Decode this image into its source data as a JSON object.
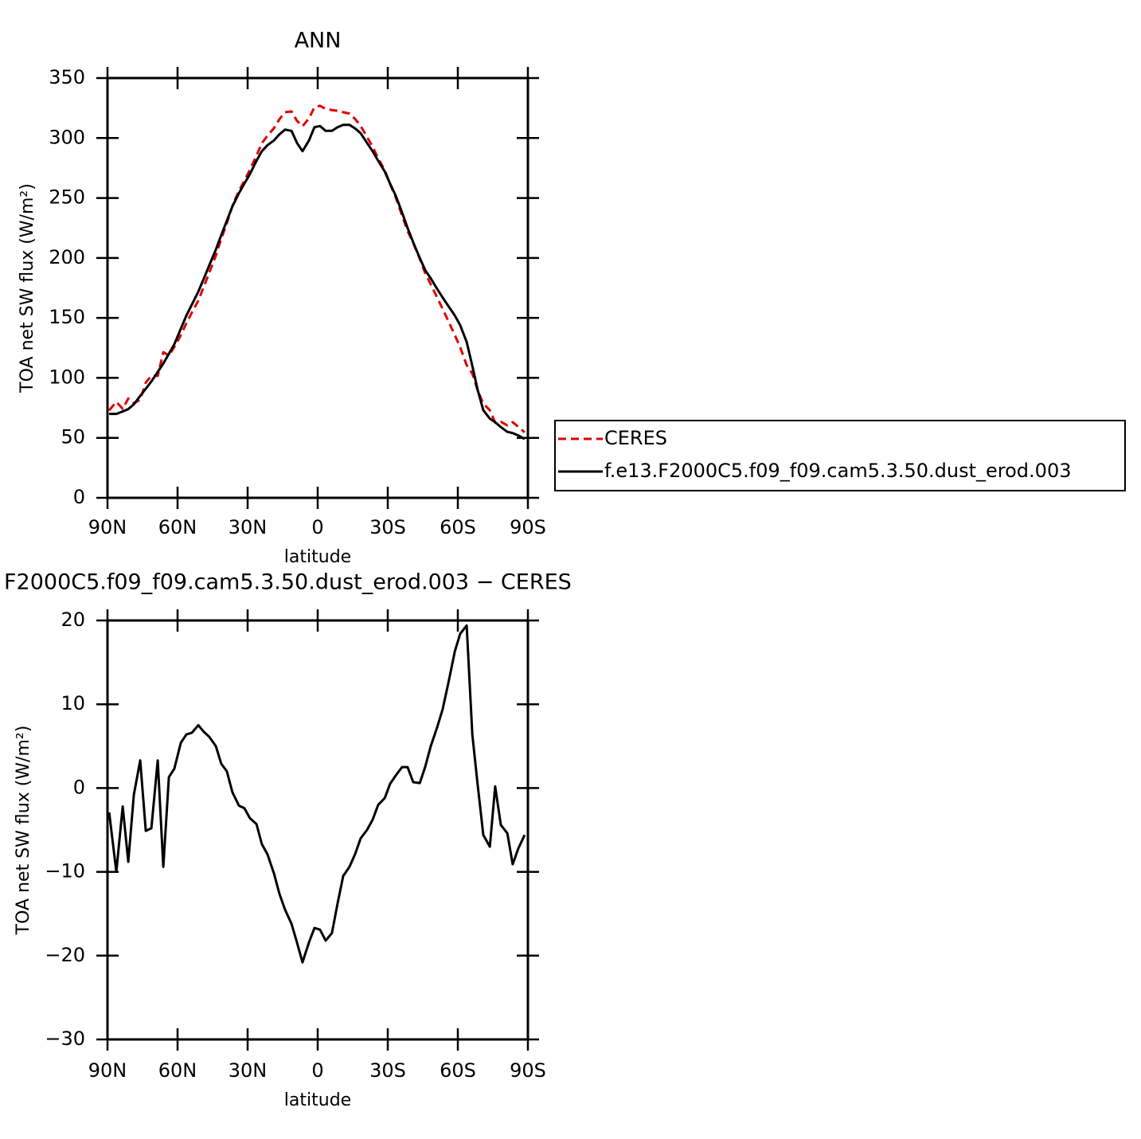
{
  "chart_data": [
    {
      "type": "line",
      "title": "ANN",
      "ylabel": "TOA net SW flux (W/m²)",
      "xlabel": "latitude",
      "x": [
        89.3,
        86.2,
        83.5,
        81.1,
        78.7,
        76.0,
        73.6,
        71.2,
        68.5,
        66.1,
        63.7,
        61.4,
        58.6,
        56.2,
        53.9,
        51.1,
        48.7,
        46.4,
        43.6,
        41.3,
        38.9,
        36.5,
        33.7,
        31.4,
        29.0,
        26.2,
        23.9,
        21.5,
        18.7,
        16.4,
        14.0,
        11.2,
        8.9,
        6.5,
        3.7,
        1.4,
        -1.0,
        -3.4,
        -6.1,
        -8.5,
        -10.9,
        -13.6,
        -16.0,
        -18.4,
        -21.1,
        -23.5,
        -25.9,
        -28.7,
        -31.0,
        -33.4,
        -36.1,
        -38.5,
        -40.9,
        -43.7,
        -46.0,
        -48.4,
        -51.2,
        -53.5,
        -55.9,
        -58.7,
        -61.0,
        -63.8,
        -66.2,
        -68.5,
        -70.9,
        -73.7,
        -76.0,
        -78.4,
        -81.2,
        -83.5,
        -85.9,
        -88.6
      ],
      "series": [
        {
          "name": "CERES",
          "color": "#e00000",
          "dash": true,
          "values": [
            72.9,
            80,
            74.2,
            82.8,
            78.8,
            81.7,
            96.1,
            101.8,
            101.7,
            121.4,
            118.7,
            125.7,
            135.6,
            145.6,
            154.4,
            164.5,
            176.3,
            187.9,
            202,
            216.1,
            229,
            243.5,
            256.1,
            264.4,
            273.6,
            285.3,
            295.7,
            301.9,
            308.2,
            315.6,
            321.5,
            322.2,
            314.4,
            309.8,
            316.4,
            325.7,
            326.9,
            324.2,
            323.3,
            322.8,
            321.5,
            320.4,
            315.9,
            310,
            301,
            292.8,
            283,
            273.2,
            261.5,
            250.5,
            235.5,
            222.5,
            212.3,
            199.4,
            187.5,
            178,
            166.7,
            157.6,
            147.5,
            135.7,
            125.6,
            110.6,
            103.6,
            89.6,
            78.6,
            73,
            62.8,
            63.4,
            60.4,
            63.1,
            59.2,
            54.6
          ]
        },
        {
          "name": "f.e13.F2000C5.f09_f09.cam5.3.50.dust_erod.003",
          "color": "#000000",
          "dash": false,
          "values": [
            70,
            70,
            72,
            74,
            78,
            85,
            91,
            97,
            105,
            112,
            120,
            128,
            141,
            152,
            161,
            172,
            183,
            194,
            207,
            219,
            231,
            243,
            254,
            262,
            270,
            281,
            289,
            294,
            298,
            303,
            307,
            306,
            296,
            289,
            298,
            309,
            310,
            306,
            306,
            309,
            311,
            311,
            308,
            304,
            296,
            289,
            281,
            272,
            262,
            252,
            238,
            225,
            213,
            200,
            190,
            183,
            174,
            167,
            160,
            152,
            144,
            130,
            110,
            90,
            73,
            66,
            63,
            59,
            55,
            54,
            52,
            49
          ]
        }
      ],
      "xlim": [
        90,
        -90
      ],
      "xticks": [
        {
          "value": 90,
          "label": "90N"
        },
        {
          "value": 60,
          "label": "60N"
        },
        {
          "value": 30,
          "label": "30N"
        },
        0,
        {
          "value": -30,
          "label": "30S"
        },
        {
          "value": -60,
          "label": "60S"
        },
        {
          "value": -90,
          "label": "90S"
        }
      ],
      "ylim": [
        0,
        350
      ],
      "yticks": [
        0,
        50,
        100,
        150,
        200,
        250,
        300,
        350
      ],
      "legend": "right"
    },
    {
      "type": "line",
      "title": "F2000C5.f09_f09.cam5.3.50.dust_erod.003 − CERES",
      "ylabel": "TOA net SW flux (W/m²)",
      "xlabel": "latitude",
      "x": [
        89.3,
        86.2,
        83.5,
        81.1,
        78.7,
        76.0,
        73.6,
        71.2,
        68.5,
        66.1,
        63.7,
        61.4,
        58.6,
        56.2,
        53.9,
        51.1,
        48.7,
        46.4,
        43.6,
        41.3,
        38.9,
        36.5,
        33.7,
        31.4,
        29.0,
        26.2,
        23.9,
        21.5,
        18.7,
        16.4,
        14.0,
        11.2,
        8.9,
        6.5,
        3.7,
        1.4,
        -1.0,
        -3.4,
        -6.1,
        -8.5,
        -10.9,
        -13.6,
        -16.0,
        -18.4,
        -21.1,
        -23.5,
        -25.9,
        -28.7,
        -31.0,
        -33.4,
        -36.1,
        -38.5,
        -40.9,
        -43.7,
        -46.0,
        -48.4,
        -51.2,
        -53.5,
        -55.9,
        -58.7,
        -61.0,
        -63.8,
        -66.2,
        -68.5,
        -70.9,
        -73.7,
        -76.0,
        -78.4,
        -81.2,
        -83.5,
        -85.9,
        -88.6
      ],
      "color": "#000000",
      "values": [
        -2.9,
        -10.0,
        -2.2,
        -8.8,
        -0.8,
        3.3,
        -5.1,
        -4.8,
        3.3,
        -9.4,
        1.3,
        2.3,
        5.4,
        6.4,
        6.6,
        7.5,
        6.7,
        6.1,
        5.0,
        2.9,
        2.0,
        -0.5,
        -2.1,
        -2.4,
        -3.6,
        -4.3,
        -6.7,
        -7.9,
        -10.2,
        -12.6,
        -14.5,
        -16.2,
        -18.4,
        -20.8,
        -18.4,
        -16.7,
        -16.9,
        -18.2,
        -17.3,
        -13.8,
        -10.5,
        -9.4,
        -7.9,
        -6.0,
        -5.0,
        -3.8,
        -2.0,
        -1.2,
        0.5,
        1.5,
        2.5,
        2.5,
        0.7,
        0.6,
        2.5,
        5.0,
        7.3,
        9.4,
        12.5,
        16.3,
        18.4,
        19.4,
        6.4,
        0.4,
        -5.6,
        -7.0,
        0.2,
        -4.4,
        -5.4,
        -9.1,
        -7.2,
        -5.6
      ],
      "xlim": [
        90,
        -90
      ],
      "xticks": [
        {
          "value": 90,
          "label": "90N"
        },
        {
          "value": 60,
          "label": "60N"
        },
        {
          "value": 30,
          "label": "30N"
        },
        0,
        {
          "value": -30,
          "label": "30S"
        },
        {
          "value": -60,
          "label": "60S"
        },
        {
          "value": -90,
          "label": "90S"
        }
      ],
      "ylim": [
        -30,
        20
      ],
      "yticks": [
        {
          "value": -30,
          "label": "−30"
        },
        {
          "value": -20,
          "label": "−20"
        },
        {
          "value": -10,
          "label": "−10"
        },
        0,
        10,
        20
      ]
    }
  ]
}
